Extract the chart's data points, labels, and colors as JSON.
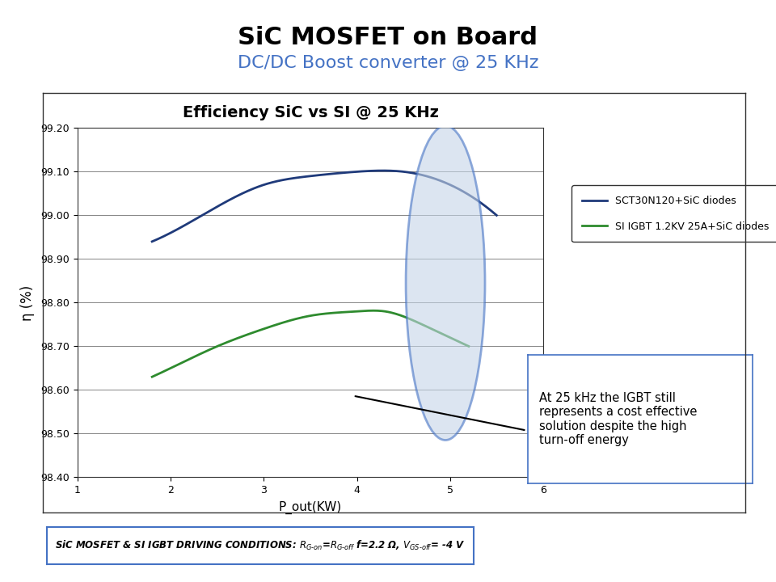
{
  "title": "SiC MOSFET on Board",
  "subtitle": "DC/DC Boost converter @ 25 KHz",
  "chart_title": "Efficiency SiC vs SI @ 25 KHz",
  "xlabel": "P_out(KW)",
  "ylabel": "η (%)",
  "xlim": [
    1,
    6
  ],
  "ylim": [
    98.4,
    99.2
  ],
  "yticks": [
    98.4,
    98.5,
    98.6,
    98.7,
    98.8,
    98.9,
    99.0,
    99.1,
    99.2
  ],
  "xticks": [
    1,
    2,
    3,
    4,
    5,
    6
  ],
  "sic_x": [
    1.8,
    2.0,
    2.5,
    3.0,
    3.5,
    4.0,
    4.5,
    5.0,
    5.5
  ],
  "sic_y": [
    98.94,
    98.96,
    99.02,
    99.07,
    99.09,
    99.1,
    99.1,
    99.07,
    99.0
  ],
  "igbt_x": [
    1.8,
    2.0,
    2.5,
    3.0,
    3.5,
    4.0,
    4.3,
    4.7,
    5.0,
    5.2
  ],
  "igbt_y": [
    98.63,
    98.65,
    98.7,
    98.74,
    98.77,
    98.78,
    98.78,
    98.75,
    98.72,
    98.7
  ],
  "sic_color": "#1f3a7a",
  "igbt_color": "#2e8b2e",
  "sic_label": "SCT30N120+SiC diodes",
  "igbt_label": "SI IGBT 1.2KV 25A+SiC diodes",
  "annotation_text": "At 25 kHz the IGBT still\nrepresents a cost effective\nsolution despite the high\nturn-off energy",
  "bottom_text_bold": "SiC MOSFET & SI IGBT DRIVING CONDITIONS: ",
  "bottom_text_normal": "R",
  "title_color": "#000000",
  "subtitle_color": "#4472c4",
  "bg_color": "#ffffff",
  "plot_bg": "#ffffff",
  "grid_color": "#000000",
  "ellipse_color": "#4472c4",
  "ellipse_fill": "#c5d5e8"
}
